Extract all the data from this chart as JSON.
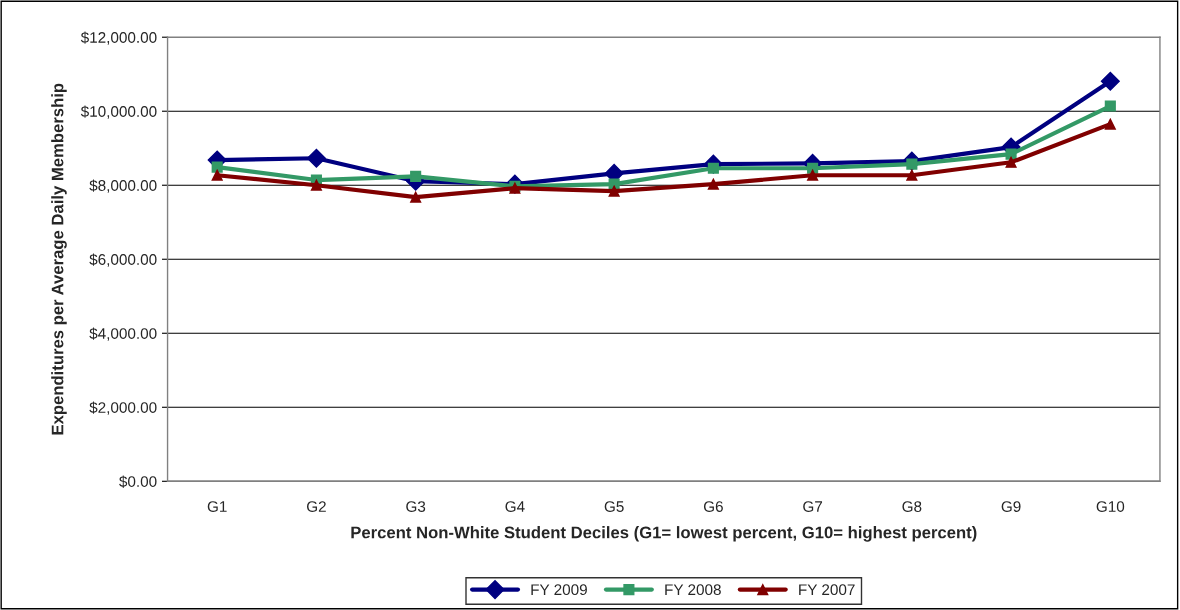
{
  "chart_data": {
    "type": "line",
    "xlabel": "Percent Non-White Student Deciles (G1= lowest percent, G10= highest percent)",
    "ylabel": "Expenditures per Average Daily Membership",
    "categories": [
      "G1",
      "G2",
      "G3",
      "G4",
      "G5",
      "G6",
      "G7",
      "G8",
      "G9",
      "G10"
    ],
    "series": [
      {
        "name": "FY 2009",
        "color": "#000080",
        "marker": "diamond",
        "values": [
          8680,
          8730,
          8110,
          8030,
          8320,
          8570,
          8590,
          8650,
          9030,
          10810
        ]
      },
      {
        "name": "FY 2008",
        "color": "#339966",
        "marker": "square",
        "values": [
          8490,
          8140,
          8240,
          7970,
          8030,
          8460,
          8460,
          8570,
          8840,
          10140
        ]
      },
      {
        "name": "FY 2007",
        "color": "#800000",
        "marker": "triangle",
        "values": [
          8270,
          8000,
          7680,
          7920,
          7840,
          8030,
          8270,
          8270,
          8620,
          9650
        ]
      }
    ],
    "ylim": [
      0,
      12000
    ],
    "yticks": [
      {
        "value": 0,
        "label": "$0.00"
      },
      {
        "value": 2000,
        "label": "$2,000.00"
      },
      {
        "value": 4000,
        "label": "$4,000.00"
      },
      {
        "value": 6000,
        "label": "$6,000.00"
      },
      {
        "value": 8000,
        "label": "$8,000.00"
      },
      {
        "value": 10000,
        "label": "$10,000.00"
      },
      {
        "value": 12000,
        "label": "$12,000.00"
      }
    ],
    "grid": "y",
    "legend": "bottom",
    "line_style": "solid"
  }
}
